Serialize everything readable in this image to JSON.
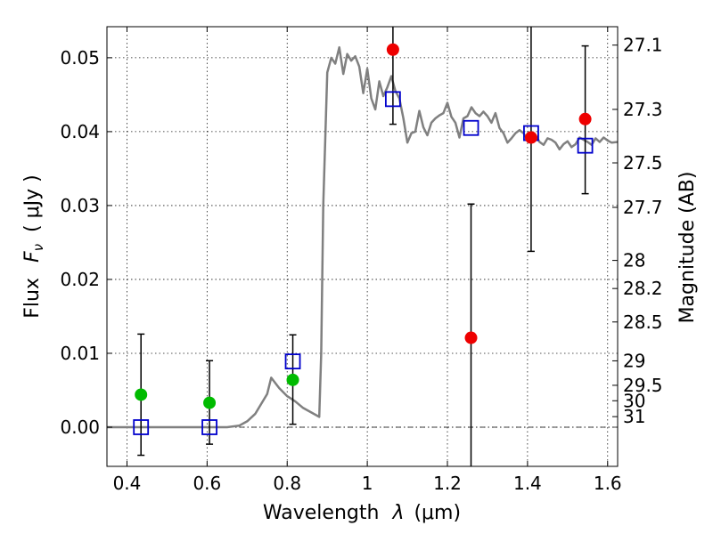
{
  "chart_data": {
    "type": "scatter",
    "title": "",
    "xlabel_text": "Wavelength",
    "xlabel_symbol": "λ",
    "xlabel_unit": "(μm)",
    "ylabel_text": "Flux",
    "ylabel_symbol": "F",
    "ylabel_subscript": "ν",
    "ylabel_unit": "( μJy )",
    "y2label": "Magnitude (AB)",
    "xlim": [
      0.35,
      1.625
    ],
    "ylim": [
      -0.0053,
      0.0542
    ],
    "xticks": [
      0.4,
      0.6,
      0.8,
      1,
      1.2,
      1.4,
      1.6
    ],
    "xtick_labels": [
      "0.4",
      "0.6",
      "0.8",
      "1",
      "1.2",
      "1.4",
      "1.6"
    ],
    "yticks": [
      0.0,
      0.01,
      0.02,
      0.03,
      0.04,
      0.05
    ],
    "ytick_labels": [
      "0.00",
      "0.01",
      "0.02",
      "0.03",
      "0.04",
      "0.05"
    ],
    "mag_ticks": [
      {
        "label": "27.1",
        "flux": 0.05171
      },
      {
        "label": "27.3",
        "flux": 0.04301
      },
      {
        "label": "27.5",
        "flux": 0.03577
      },
      {
        "label": "27.7",
        "flux": 0.02975
      },
      {
        "label": "28",
        "flux": 0.02257
      },
      {
        "label": "28.2",
        "flux": 0.01877
      },
      {
        "label": "28.5",
        "flux": 0.01424
      },
      {
        "label": "29",
        "flux": 0.00898
      },
      {
        "label": "29.5",
        "flux": 0.00567
      },
      {
        "label": "30",
        "flux": 0.00358
      },
      {
        "label": "31",
        "flux": 0.00143
      }
    ],
    "grid": true,
    "colors": {
      "model": "#808080",
      "detection": "#00bb00",
      "upper_limit": "#ee0000",
      "model_photometry": "#0000cc",
      "errorbar": "#000000"
    },
    "model_spectrum": {
      "x": [
        0.35,
        0.5,
        0.6,
        0.65,
        0.68,
        0.7,
        0.72,
        0.75,
        0.76,
        0.78,
        0.8,
        0.82,
        0.84,
        0.86,
        0.88,
        0.885,
        0.89,
        0.9,
        0.91,
        0.92,
        0.93,
        0.94,
        0.95,
        0.96,
        0.97,
        0.98,
        0.99,
        1.0,
        1.01,
        1.02,
        1.03,
        1.04,
        1.05,
        1.06,
        1.07,
        1.08,
        1.09,
        1.1,
        1.11,
        1.12,
        1.13,
        1.14,
        1.15,
        1.16,
        1.17,
        1.18,
        1.19,
        1.2,
        1.21,
        1.22,
        1.23,
        1.24,
        1.25,
        1.26,
        1.27,
        1.28,
        1.29,
        1.3,
        1.31,
        1.32,
        1.33,
        1.34,
        1.35,
        1.36,
        1.37,
        1.38,
        1.39,
        1.4,
        1.41,
        1.42,
        1.43,
        1.44,
        1.45,
        1.46,
        1.47,
        1.48,
        1.49,
        1.5,
        1.51,
        1.52,
        1.53,
        1.54,
        1.55,
        1.56,
        1.57,
        1.58,
        1.59,
        1.6,
        1.61,
        1.625
      ],
      "y": [
        0.0,
        0.0,
        0.0,
        0.0,
        0.0002,
        0.0008,
        0.0018,
        0.0045,
        0.0067,
        0.0053,
        0.0042,
        0.0035,
        0.0026,
        0.002,
        0.0014,
        0.01,
        0.03,
        0.048,
        0.05,
        0.0492,
        0.0514,
        0.0478,
        0.0505,
        0.0496,
        0.0502,
        0.0488,
        0.0452,
        0.0485,
        0.0445,
        0.043,
        0.0468,
        0.0448,
        0.046,
        0.0475,
        0.0455,
        0.0445,
        0.0418,
        0.0385,
        0.0398,
        0.04,
        0.0428,
        0.0406,
        0.0395,
        0.0412,
        0.0418,
        0.0422,
        0.0425,
        0.0439,
        0.042,
        0.0412,
        0.0392,
        0.0418,
        0.0421,
        0.0433,
        0.0425,
        0.0421,
        0.0427,
        0.0421,
        0.0412,
        0.0425,
        0.0405,
        0.0398,
        0.0385,
        0.0391,
        0.0398,
        0.0402,
        0.0398,
        0.0389,
        0.0393,
        0.0395,
        0.0386,
        0.0382,
        0.0391,
        0.0389,
        0.0385,
        0.0376,
        0.0383,
        0.0387,
        0.0379,
        0.0383,
        0.0392,
        0.0389,
        0.0386,
        0.0382,
        0.0391,
        0.0386,
        0.0392,
        0.0388,
        0.0385,
        0.0386
      ]
    },
    "detections": [
      {
        "x": 0.435,
        "y": 0.0044,
        "yerr_low": -0.0038,
        "yerr_high": 0.0126
      },
      {
        "x": 0.606,
        "y": 0.0033,
        "yerr_low": -0.0023,
        "yerr_high": 0.009
      },
      {
        "x": 0.814,
        "y": 0.0064,
        "yerr_low": 0.0004,
        "yerr_high": 0.0125
      }
    ],
    "upper_limits": [
      {
        "x": 1.064,
        "y": 0.0511,
        "yerr_low": 0.041,
        "yerr_high": 0.0542
      },
      {
        "x": 1.259,
        "y": 0.0121,
        "yerr_low": -0.0053,
        "yerr_high": 0.0302
      },
      {
        "x": 1.409,
        "y": 0.0392,
        "yerr_low": 0.0238,
        "yerr_high": 0.0542
      },
      {
        "x": 1.544,
        "y": 0.0417,
        "yerr_low": 0.0316,
        "yerr_high": 0.0516
      }
    ],
    "model_photometry": [
      {
        "x": 0.435,
        "y": 0.0
      },
      {
        "x": 0.606,
        "y": 0.0
      },
      {
        "x": 0.814,
        "y": 0.0089
      },
      {
        "x": 1.064,
        "y": 0.0444
      },
      {
        "x": 1.259,
        "y": 0.0405
      },
      {
        "x": 1.409,
        "y": 0.0398
      },
      {
        "x": 1.544,
        "y": 0.0381
      }
    ]
  }
}
